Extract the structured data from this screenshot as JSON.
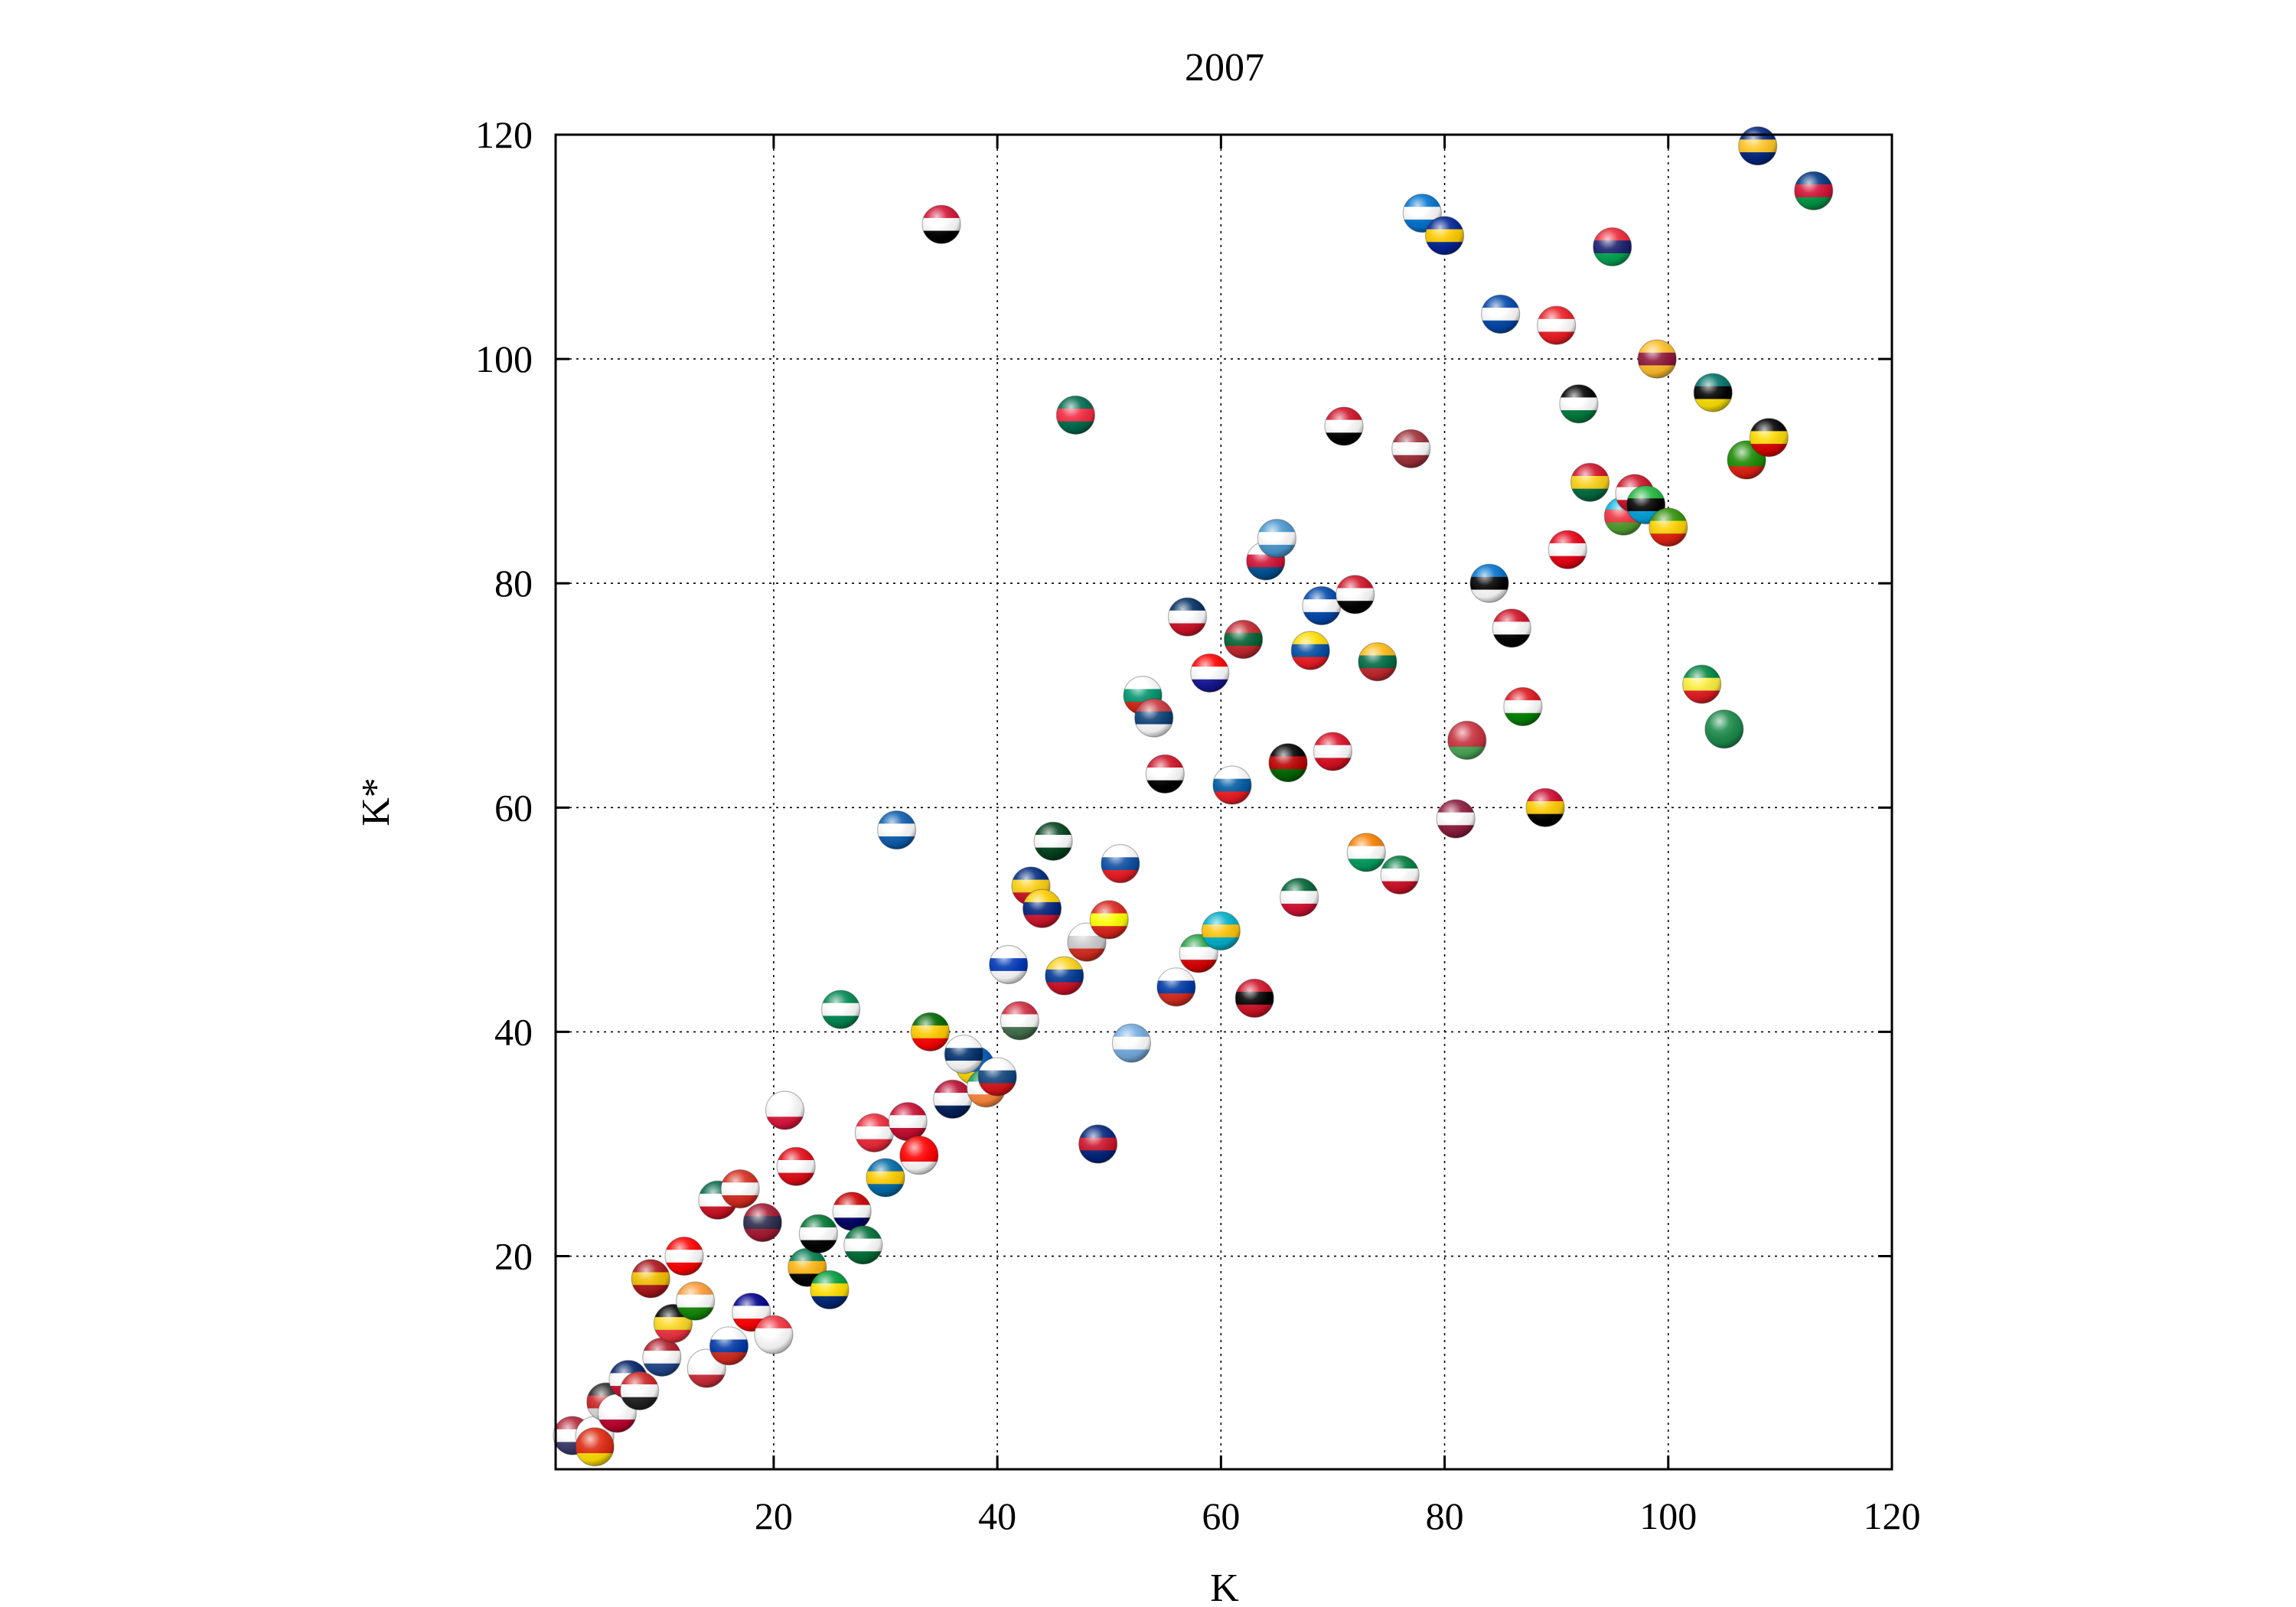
{
  "chart_data": {
    "type": "scatter",
    "title": "2007",
    "xlabel": "K",
    "ylabel": "K*",
    "xlim": [
      0.5,
      120
    ],
    "ylim": [
      1,
      120
    ],
    "xticks": [
      20,
      40,
      60,
      80,
      100,
      120
    ],
    "yticks": [
      20,
      40,
      60,
      80,
      100,
      120
    ],
    "xtick_labels": [
      "20",
      "40",
      "60",
      "80",
      "100",
      "120"
    ],
    "ytick_labels": [
      "20",
      "40",
      "60",
      "80",
      "100",
      "120"
    ],
    "grid": true,
    "marker": "country-flag-sphere",
    "points": [
      {
        "flag": "united-states",
        "x": 2,
        "y": 4,
        "colors": [
          "#b22234",
          "#ffffff",
          "#3c3b6e"
        ]
      },
      {
        "flag": "japan",
        "x": 4,
        "y": 4,
        "colors": [
          "#ffffff",
          "#ffffff",
          "#555555"
        ]
      },
      {
        "flag": "china",
        "x": 4,
        "y": 3,
        "colors": [
          "#de2910",
          "#de2910",
          "#ffde00"
        ]
      },
      {
        "flag": "unknown",
        "x": 5,
        "y": 7,
        "colors": [
          "#2a2a2a",
          "#cc2222",
          "#dddddd"
        ]
      },
      {
        "flag": "japan",
        "x": 6,
        "y": 6,
        "colors": [
          "#ffffff",
          "#ffffff",
          "#bc002d"
        ]
      },
      {
        "flag": "united-kingdom",
        "x": 7,
        "y": 9,
        "colors": [
          "#012169",
          "#ffffff",
          "#c8102e"
        ]
      },
      {
        "flag": "unknown",
        "x": 8,
        "y": 8,
        "colors": [
          "#cc2222",
          "#ffffff",
          "#222222"
        ]
      },
      {
        "flag": "netherlands",
        "x": 10,
        "y": 11,
        "colors": [
          "#ae1c28",
          "#ffffff",
          "#21468b"
        ]
      },
      {
        "flag": "belgium",
        "x": 11,
        "y": 14,
        "colors": [
          "#000000",
          "#fdda24",
          "#ef3340"
        ]
      },
      {
        "flag": "spain",
        "x": 9,
        "y": 18,
        "colors": [
          "#aa151b",
          "#f1bf00",
          "#aa151b"
        ]
      },
      {
        "flag": "canada",
        "x": 12,
        "y": 20,
        "colors": [
          "#ff0000",
          "#ffffff",
          "#ff0000"
        ]
      },
      {
        "flag": "india",
        "x": 13,
        "y": 16,
        "colors": [
          "#ff9933",
          "#ffffff",
          "#138808"
        ]
      },
      {
        "flag": "south-korea",
        "x": 14,
        "y": 10,
        "colors": [
          "#ffffff",
          "#ffffff",
          "#cd2e3a"
        ]
      },
      {
        "flag": "mexico",
        "x": 15,
        "y": 25,
        "colors": [
          "#006847",
          "#ffffff",
          "#ce1126"
        ]
      },
      {
        "flag": "russia",
        "x": 16,
        "y": 12,
        "colors": [
          "#ffffff",
          "#0039a6",
          "#d52b1e"
        ]
      },
      {
        "flag": "switzerland",
        "x": 17,
        "y": 26,
        "colors": [
          "#d52b1e",
          "#ffffff",
          "#d52b1e"
        ]
      },
      {
        "flag": "australia",
        "x": 18,
        "y": 15,
        "colors": [
          "#00008b",
          "#ffffff",
          "#ff0000"
        ]
      },
      {
        "flag": "thailand",
        "x": 19,
        "y": 23,
        "colors": [
          "#a51931",
          "#2d2a4a",
          "#a51931"
        ]
      },
      {
        "flag": "singapore",
        "x": 20,
        "y": 13,
        "colors": [
          "#ef3340",
          "#ffffff",
          "#ffffff"
        ]
      },
      {
        "flag": "poland",
        "x": 21,
        "y": 33,
        "colors": [
          "#ffffff",
          "#ffffff",
          "#dc143c"
        ]
      },
      {
        "flag": "turkey",
        "x": 22,
        "y": 28,
        "colors": [
          "#e30a17",
          "#ffffff",
          "#e30a17"
        ]
      },
      {
        "flag": "south-africa",
        "x": 23,
        "y": 19,
        "colors": [
          "#007a4d",
          "#ffb612",
          "#000000"
        ]
      },
      {
        "flag": "united-arab-emirates",
        "x": 24,
        "y": 22,
        "colors": [
          "#00732f",
          "#ffffff",
          "#000000"
        ]
      },
      {
        "flag": "brazil",
        "x": 25,
        "y": 17,
        "colors": [
          "#009c3b",
          "#ffdf00",
          "#002776"
        ]
      },
      {
        "flag": "nigeria",
        "x": 26,
        "y": 42,
        "colors": [
          "#008751",
          "#ffffff",
          "#008751"
        ]
      },
      {
        "flag": "malaysia",
        "x": 27,
        "y": 24,
        "colors": [
          "#cc0001",
          "#ffffff",
          "#010066"
        ]
      },
      {
        "flag": "saudi-arabia",
        "x": 28,
        "y": 21,
        "colors": [
          "#006c35",
          "#ffffff",
          "#006c35"
        ]
      },
      {
        "flag": "austria",
        "x": 29,
        "y": 31,
        "colors": [
          "#ed2939",
          "#ffffff",
          "#ed2939"
        ]
      },
      {
        "flag": "sweden",
        "x": 30,
        "y": 27,
        "colors": [
          "#006aa7",
          "#fecc00",
          "#006aa7"
        ]
      },
      {
        "flag": "greece",
        "x": 31,
        "y": 58,
        "colors": [
          "#0d5eaf",
          "#ffffff",
          "#0d5eaf"
        ]
      },
      {
        "flag": "denmark",
        "x": 32,
        "y": 32,
        "colors": [
          "#c60c30",
          "#ffffff",
          "#c60c30"
        ]
      },
      {
        "flag": "indonesia",
        "x": 33,
        "y": 29,
        "colors": [
          "#ff0000",
          "#ff0000",
          "#ffffff"
        ]
      },
      {
        "flag": "portugal",
        "x": 34,
        "y": 40,
        "colors": [
          "#006600",
          "#ffcc00",
          "#ff0000"
        ]
      },
      {
        "flag": "sudan",
        "x": 35,
        "y": 112,
        "colors": [
          "#d21034",
          "#ffffff",
          "#000000"
        ]
      },
      {
        "flag": "norway",
        "x": 36,
        "y": 34,
        "colors": [
          "#ba0c2f",
          "#ffffff",
          "#00205b"
        ]
      },
      {
        "flag": "ukraine",
        "x": 38,
        "y": 37,
        "colors": [
          "#0057b7",
          "#0057b7",
          "#ffd700"
        ]
      },
      {
        "flag": "finland",
        "x": 37,
        "y": 38,
        "colors": [
          "#ffffff",
          "#002f6c",
          "#ffffff"
        ]
      },
      {
        "flag": "ireland",
        "x": 39,
        "y": 35,
        "colors": [
          "#169b62",
          "#ffffff",
          "#ff883e"
        ]
      },
      {
        "flag": "czech-republic",
        "x": 40,
        "y": 36,
        "colors": [
          "#ffffff",
          "#11457e",
          "#d7141a"
        ]
      },
      {
        "flag": "israel",
        "x": 41,
        "y": 46,
        "colors": [
          "#ffffff",
          "#0038b8",
          "#ffffff"
        ]
      },
      {
        "flag": "hungary",
        "x": 42,
        "y": 41,
        "colors": [
          "#cd2a3e",
          "#ffffff",
          "#436f4d"
        ]
      },
      {
        "flag": "romania",
        "x": 43,
        "y": 53,
        "colors": [
          "#002b7f",
          "#fcd116",
          "#ce1126"
        ]
      },
      {
        "flag": "venezuela",
        "x": 44,
        "y": 51,
        "colors": [
          "#ffcc00",
          "#00247d",
          "#cf142b"
        ]
      },
      {
        "flag": "pakistan",
        "x": 45,
        "y": 57,
        "colors": [
          "#01411c",
          "#ffffff",
          "#01411c"
        ]
      },
      {
        "flag": "colombia",
        "x": 46,
        "y": 45,
        "colors": [
          "#fcd116",
          "#003893",
          "#ce1126"
        ]
      },
      {
        "flag": "bangladesh",
        "x": 47,
        "y": 95,
        "colors": [
          "#006a4e",
          "#f42a41",
          "#006a4e"
        ]
      },
      {
        "flag": "argentina-like",
        "x": 48,
        "y": 48,
        "colors": [
          "#ffffff",
          "#cccccc",
          "#d52b1e"
        ]
      },
      {
        "flag": "new-zealand",
        "x": 49,
        "y": 30,
        "colors": [
          "#00247d",
          "#cc142b",
          "#00247d"
        ]
      },
      {
        "flag": "vietnam",
        "x": 50,
        "y": 50,
        "colors": [
          "#da251d",
          "#ffff00",
          "#da251d"
        ]
      },
      {
        "flag": "slovakia",
        "x": 51,
        "y": 55,
        "colors": [
          "#ffffff",
          "#0b4ea2",
          "#ee1c25"
        ]
      },
      {
        "flag": "argentina",
        "x": 52,
        "y": 39,
        "colors": [
          "#74acdf",
          "#ffffff",
          "#74acdf"
        ]
      },
      {
        "flag": "bulgaria",
        "x": 53,
        "y": 70,
        "colors": [
          "#ffffff",
          "#00966e",
          "#d62612"
        ]
      },
      {
        "flag": "serbia",
        "x": 54,
        "y": 68,
        "colors": [
          "#c6363c",
          "#0c4076",
          "#ffffff"
        ]
      },
      {
        "flag": "egypt",
        "x": 55,
        "y": 63,
        "colors": [
          "#ce1126",
          "#ffffff",
          "#000000"
        ]
      },
      {
        "flag": "chile",
        "x": 56,
        "y": 44,
        "colors": [
          "#ffffff",
          "#0039a6",
          "#d52b1e"
        ]
      },
      {
        "flag": "dominican-republic",
        "x": 57,
        "y": 77,
        "colors": [
          "#002d62",
          "#ffffff",
          "#ce1126"
        ]
      },
      {
        "flag": "iran",
        "x": 58,
        "y": 47,
        "colors": [
          "#239f40",
          "#ffffff",
          "#da0000"
        ]
      },
      {
        "flag": "croatia",
        "x": 59,
        "y": 72,
        "colors": [
          "#ff0000",
          "#ffffff",
          "#171796"
        ]
      },
      {
        "flag": "kazakhstan",
        "x": 60,
        "y": 49,
        "colors": [
          "#00afca",
          "#fec50c",
          "#00afca"
        ]
      },
      {
        "flag": "slovenia",
        "x": 61,
        "y": 62,
        "colors": [
          "#ffffff",
          "#005da4",
          "#ed1c24"
        ]
      },
      {
        "flag": "morocco",
        "x": 62,
        "y": 75,
        "colors": [
          "#c1272d",
          "#006233",
          "#c1272d"
        ]
      },
      {
        "flag": "trinidad-and-tobago",
        "x": 63,
        "y": 43,
        "colors": [
          "#ce1126",
          "#000000",
          "#ce1126"
        ]
      },
      {
        "flag": "panama",
        "x": 64,
        "y": 82,
        "colors": [
          "#ffffff",
          "#d21034",
          "#005293"
        ]
      },
      {
        "flag": "guatemala",
        "x": 65,
        "y": 84,
        "colors": [
          "#4997d0",
          "#ffffff",
          "#4997d0"
        ]
      },
      {
        "flag": "kenya",
        "x": 66,
        "y": 64,
        "colors": [
          "#000000",
          "#bb0000",
          "#006600"
        ]
      },
      {
        "flag": "algeria",
        "x": 67,
        "y": 52,
        "colors": [
          "#006233",
          "#ffffff",
          "#d21034"
        ]
      },
      {
        "flag": "ecuador",
        "x": 68,
        "y": 74,
        "colors": [
          "#ffdd00",
          "#034ea2",
          "#ed1c24"
        ]
      },
      {
        "flag": "el-salvador-like",
        "x": 69,
        "y": 78,
        "colors": [
          "#0047ab",
          "#ffffff",
          "#0047ab"
        ]
      },
      {
        "flag": "peru",
        "x": 70,
        "y": 65,
        "colors": [
          "#d91023",
          "#ffffff",
          "#d91023"
        ]
      },
      {
        "flag": "yemen",
        "x": 71,
        "y": 94,
        "colors": [
          "#ce1126",
          "#ffffff",
          "#000000"
        ]
      },
      {
        "flag": "syria",
        "x": 72,
        "y": 79,
        "colors": [
          "#ce1126",
          "#ffffff",
          "#000000"
        ]
      },
      {
        "flag": "cote-divoire",
        "x": 73,
        "y": 56,
        "colors": [
          "#f77f00",
          "#ffffff",
          "#009e60"
        ]
      },
      {
        "flag": "lithuania",
        "x": 74,
        "y": 73,
        "colors": [
          "#fdb913",
          "#006a44",
          "#c1272d"
        ]
      },
      {
        "flag": "kuwait",
        "x": 76,
        "y": 54,
        "colors": [
          "#007a3d",
          "#ffffff",
          "#ce1126"
        ]
      },
      {
        "flag": "latvia",
        "x": 77,
        "y": 92,
        "colors": [
          "#9e3039",
          "#ffffff",
          "#9e3039"
        ]
      },
      {
        "flag": "honduras",
        "x": 78,
        "y": 113,
        "colors": [
          "#0073cf",
          "#ffffff",
          "#0073cf"
        ]
      },
      {
        "flag": "bosnia-and-herzegovina",
        "x": 80,
        "y": 111,
        "colors": [
          "#002395",
          "#fecb00",
          "#002395"
        ]
      },
      {
        "flag": "qatar",
        "x": 81,
        "y": 59,
        "colors": [
          "#8d1b3d",
          "#ffffff",
          "#8d1b3d"
        ]
      },
      {
        "flag": "belarus",
        "x": 82,
        "y": 66,
        "colors": [
          "#c8313e",
          "#c8313e",
          "#4aa657"
        ]
      },
      {
        "flag": "estonia",
        "x": 84,
        "y": 80,
        "colors": [
          "#0072ce",
          "#000000",
          "#ffffff"
        ]
      },
      {
        "flag": "el-salvador",
        "x": 85,
        "y": 104,
        "colors": [
          "#0047ab",
          "#ffffff",
          "#0047ab"
        ]
      },
      {
        "flag": "iraq",
        "x": 86,
        "y": 76,
        "colors": [
          "#ce1126",
          "#ffffff",
          "#000000"
        ]
      },
      {
        "flag": "oman",
        "x": 87,
        "y": 69,
        "colors": [
          "#db161b",
          "#ffffff",
          "#008000"
        ]
      },
      {
        "flag": "angola",
        "x": 89,
        "y": 60,
        "colors": [
          "#cc092f",
          "#ffcb00",
          "#000000"
        ]
      },
      {
        "flag": "lebanon",
        "x": 90,
        "y": 103,
        "colors": [
          "#ed1c24",
          "#ffffff",
          "#ed1c24"
        ]
      },
      {
        "flag": "tunisia",
        "x": 91,
        "y": 83,
        "colors": [
          "#e70013",
          "#ffffff",
          "#e70013"
        ]
      },
      {
        "flag": "jordan",
        "x": 92,
        "y": 96,
        "colors": [
          "#000000",
          "#ffffff",
          "#007a3d"
        ]
      },
      {
        "flag": "ghana",
        "x": 93,
        "y": 89,
        "colors": [
          "#ce1126",
          "#fcd116",
          "#006b3f"
        ]
      },
      {
        "flag": "mauritius",
        "x": 95,
        "y": 110,
        "colors": [
          "#ea2839",
          "#1a206d",
          "#00a551"
        ]
      },
      {
        "flag": "azerbaijan",
        "x": 96,
        "y": 86,
        "colors": [
          "#00b5e2",
          "#ef3340",
          "#509e2f"
        ]
      },
      {
        "flag": "unknown-red",
        "x": 97,
        "y": 88,
        "colors": [
          "#ce1126",
          "#ffffff",
          "#ce1126"
        ]
      },
      {
        "flag": "tanzania",
        "x": 98,
        "y": 87,
        "colors": [
          "#1eb53a",
          "#000000",
          "#00a3dd"
        ]
      },
      {
        "flag": "sri-lanka",
        "x": 99,
        "y": 100,
        "colors": [
          "#ffbe29",
          "#8d153a",
          "#ffbe29"
        ]
      },
      {
        "flag": "zimbabwe",
        "x": 100,
        "y": 85,
        "colors": [
          "#319208",
          "#ffd200",
          "#de2010"
        ]
      },
      {
        "flag": "senegal",
        "x": 103,
        "y": 71,
        "colors": [
          "#00853f",
          "#fdef42",
          "#e31b23"
        ]
      },
      {
        "flag": "mozambique",
        "x": 104,
        "y": 97,
        "colors": [
          "#007168",
          "#000000",
          "#fce100"
        ]
      },
      {
        "flag": "nigeria-like",
        "x": 105,
        "y": 67,
        "colors": [
          "#1b8a4a",
          "#1b8a4a",
          "#1b8a4a"
        ]
      },
      {
        "flag": "zambia",
        "x": 107,
        "y": 91,
        "colors": [
          "#198a00",
          "#198a00",
          "#de2010"
        ]
      },
      {
        "flag": "barbados",
        "x": 108,
        "y": 119,
        "colors": [
          "#00267f",
          "#ffc726",
          "#00267f"
        ]
      },
      {
        "flag": "uganda",
        "x": 109,
        "y": 93,
        "colors": [
          "#000000",
          "#fcdc04",
          "#d90000"
        ]
      },
      {
        "flag": "namibia",
        "x": 113,
        "y": 115,
        "colors": [
          "#003580",
          "#d21034",
          "#009543"
        ]
      }
    ]
  }
}
